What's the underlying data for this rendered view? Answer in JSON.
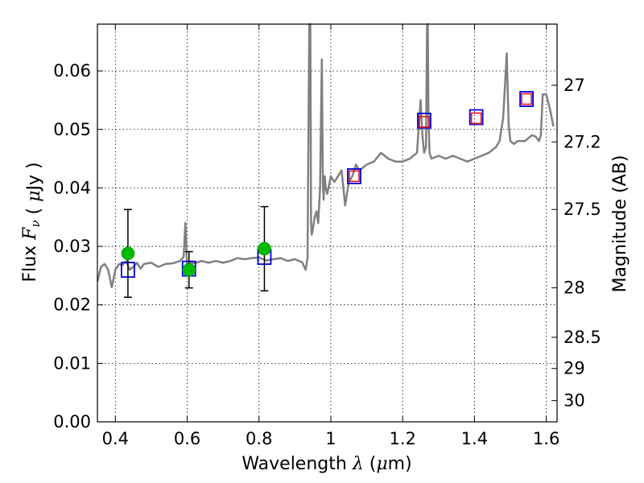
{
  "chart_data": {
    "type": "line",
    "xlabel": "Wavelength  λ (μm)",
    "ylabel": "Flux  F_ν  ( μJy )",
    "y2label": "Magnitude (AB)",
    "xlim": [
      0.35,
      1.63
    ],
    "ylim": [
      0.0,
      0.068
    ],
    "grid": true,
    "x_ticks": [
      {
        "v": 0.4,
        "label": "0.4"
      },
      {
        "v": 0.6,
        "label": "0.6"
      },
      {
        "v": 0.8,
        "label": "0.8"
      },
      {
        "v": 1.0,
        "label": "1"
      },
      {
        "v": 1.2,
        "label": "1.2"
      },
      {
        "v": 1.4,
        "label": "1.4"
      },
      {
        "v": 1.6,
        "label": "1.6"
      }
    ],
    "y_ticks": [
      {
        "v": 0.0,
        "label": "0.00"
      },
      {
        "v": 0.01,
        "label": "0.01"
      },
      {
        "v": 0.02,
        "label": "0.02"
      },
      {
        "v": 0.03,
        "label": "0.03"
      },
      {
        "v": 0.04,
        "label": "0.04"
      },
      {
        "v": 0.05,
        "label": "0.05"
      },
      {
        "v": 0.06,
        "label": "0.06"
      }
    ],
    "y2_ticks": [
      {
        "mag": 27,
        "label": "27"
      },
      {
        "mag": 27.2,
        "label": "27.2"
      },
      {
        "mag": 27.5,
        "label": "27.5"
      },
      {
        "mag": 28,
        "label": "28"
      },
      {
        "mag": 28.5,
        "label": "28.5"
      },
      {
        "mag": 29,
        "label": "29"
      },
      {
        "mag": 30,
        "label": "30"
      }
    ],
    "series": [
      {
        "kind": "spectrum",
        "color": "#808080",
        "x": [
          0.35,
          0.36,
          0.37,
          0.38,
          0.39,
          0.4,
          0.41,
          0.42,
          0.43,
          0.44,
          0.45,
          0.46,
          0.47,
          0.48,
          0.5,
          0.52,
          0.54,
          0.56,
          0.58,
          0.59,
          0.595,
          0.6,
          0.605,
          0.62,
          0.64,
          0.66,
          0.68,
          0.7,
          0.72,
          0.74,
          0.76,
          0.78,
          0.8,
          0.82,
          0.84,
          0.86,
          0.88,
          0.9,
          0.92,
          0.93,
          0.935,
          0.94,
          0.943,
          0.945,
          0.947,
          0.95,
          0.955,
          0.96,
          0.965,
          0.97,
          0.975,
          0.978,
          0.98,
          0.983,
          0.986,
          0.99,
          1.0,
          1.01,
          1.02,
          1.03,
          1.04,
          1.05,
          1.06,
          1.07,
          1.08,
          1.1,
          1.12,
          1.14,
          1.16,
          1.18,
          1.2,
          1.22,
          1.24,
          1.25,
          1.255,
          1.26,
          1.265,
          1.268,
          1.27,
          1.272,
          1.275,
          1.28,
          1.3,
          1.32,
          1.34,
          1.36,
          1.38,
          1.4,
          1.42,
          1.44,
          1.46,
          1.47,
          1.48,
          1.49,
          1.495,
          1.5,
          1.51,
          1.52,
          1.54,
          1.56,
          1.57,
          1.58,
          1.585,
          1.59,
          1.6,
          1.61,
          1.62
        ],
        "y": [
          0.024,
          0.0265,
          0.027,
          0.026,
          0.023,
          0.026,
          0.027,
          0.0268,
          0.0275,
          0.026,
          0.0265,
          0.0272,
          0.0262,
          0.027,
          0.0272,
          0.0265,
          0.027,
          0.0271,
          0.0275,
          0.0282,
          0.034,
          0.0262,
          0.0273,
          0.0271,
          0.0275,
          0.0272,
          0.0275,
          0.0272,
          0.0275,
          0.028,
          0.0278,
          0.028,
          0.0281,
          0.0276,
          0.0278,
          0.028,
          0.0275,
          0.0278,
          0.0273,
          0.026,
          0.028,
          0.07,
          0.07,
          0.034,
          0.032,
          0.033,
          0.035,
          0.036,
          0.034,
          0.04,
          0.062,
          0.041,
          0.038,
          0.042,
          0.04,
          0.039,
          0.042,
          0.041,
          0.042,
          0.043,
          0.037,
          0.041,
          0.042,
          0.044,
          0.043,
          0.044,
          0.0445,
          0.046,
          0.045,
          0.0445,
          0.0445,
          0.045,
          0.046,
          0.055,
          0.049,
          0.046,
          0.047,
          0.07,
          0.07,
          0.052,
          0.046,
          0.045,
          0.0455,
          0.045,
          0.0455,
          0.045,
          0.0445,
          0.045,
          0.0455,
          0.046,
          0.047,
          0.048,
          0.052,
          0.063,
          0.051,
          0.048,
          0.0475,
          0.048,
          0.048,
          0.049,
          0.0488,
          0.048,
          0.049,
          0.056,
          0.056,
          0.0535,
          0.0505
        ]
      },
      {
        "kind": "model_photometry",
        "marker": "square",
        "color": "#0000dd",
        "x": [
          0.435,
          0.605,
          0.815,
          1.065,
          1.26,
          1.405,
          1.545
        ],
        "y": [
          0.026,
          0.0262,
          0.0282,
          0.042,
          0.0515,
          0.0521,
          0.0552
        ]
      },
      {
        "kind": "nir_detections",
        "marker": "square",
        "color": "#ee1111",
        "x": [
          1.065,
          1.26,
          1.405,
          1.545
        ],
        "y": [
          0.042,
          0.0513,
          0.0519,
          0.0552
        ]
      },
      {
        "kind": "optical_detections",
        "marker": "circle",
        "color": "#00bb00",
        "x": [
          0.435,
          0.605,
          0.815
        ],
        "y": [
          0.0288,
          0.026,
          0.0296
        ],
        "err": [
          [
            0.0075,
            0.0075
          ],
          [
            0.0031,
            0.0031
          ],
          [
            0.0072,
            0.0072
          ]
        ]
      }
    ]
  }
}
